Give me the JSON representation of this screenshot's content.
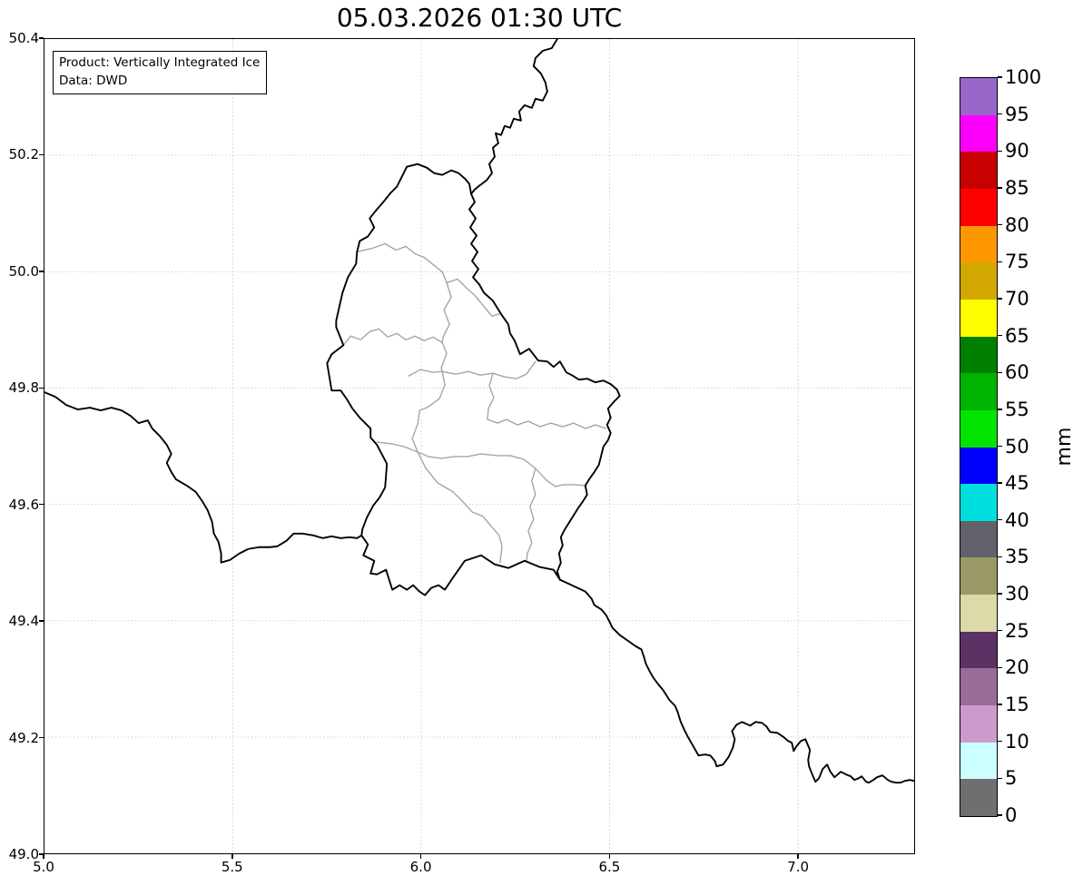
{
  "title": "05.03.2026 01:30 UTC",
  "info_box": {
    "line1": "Product: Vertically Integrated Ice",
    "line2": "Data: DWD"
  },
  "axes": {
    "x_tick_labels": [
      "5.0",
      "5.5",
      "6.0",
      "6.5",
      "7.0"
    ],
    "x_range": [
      5.0,
      7.31
    ],
    "y_tick_labels": [
      "50.4",
      "50.2",
      "50.0",
      "49.8",
      "49.6",
      "49.4",
      "49.2",
      "49.0"
    ],
    "y_range": [
      49.0,
      50.4
    ],
    "grid": "dotted"
  },
  "map": {
    "country_border_color": "#000000",
    "district_border_color": "#a5a5a5",
    "background": "#ffffff"
  },
  "colorbar": {
    "unit": "mm",
    "tick_values": [
      0,
      5,
      10,
      15,
      20,
      25,
      30,
      35,
      40,
      45,
      50,
      55,
      60,
      65,
      70,
      75,
      80,
      85,
      90,
      95,
      100
    ],
    "segments": [
      {
        "from": 0,
        "to": 5,
        "color": "#6F6F6F"
      },
      {
        "from": 5,
        "to": 10,
        "color": "#CCFFFF"
      },
      {
        "from": 10,
        "to": 15,
        "color": "#CD9ACD"
      },
      {
        "from": 15,
        "to": 20,
        "color": "#996B99"
      },
      {
        "from": 20,
        "to": 25,
        "color": "#5C3164"
      },
      {
        "from": 25,
        "to": 30,
        "color": "#DBDBA9"
      },
      {
        "from": 30,
        "to": 35,
        "color": "#9A9A68"
      },
      {
        "from": 35,
        "to": 40,
        "color": "#616169"
      },
      {
        "from": 40,
        "to": 45,
        "color": "#00DEDE"
      },
      {
        "from": 45,
        "to": 50,
        "color": "#0000FD"
      },
      {
        "from": 50,
        "to": 55,
        "color": "#00E400"
      },
      {
        "from": 55,
        "to": 60,
        "color": "#00B300"
      },
      {
        "from": 60,
        "to": 65,
        "color": "#007F00"
      },
      {
        "from": 65,
        "to": 70,
        "color": "#FDFD00"
      },
      {
        "from": 70,
        "to": 75,
        "color": "#D2A800"
      },
      {
        "from": 75,
        "to": 80,
        "color": "#FD9800"
      },
      {
        "from": 80,
        "to": 85,
        "color": "#FD0000"
      },
      {
        "from": 85,
        "to": 90,
        "color": "#C70000"
      },
      {
        "from": 90,
        "to": 95,
        "color": "#FD00FD"
      },
      {
        "from": 95,
        "to": 100,
        "color": "#9966C9"
      }
    ]
  }
}
